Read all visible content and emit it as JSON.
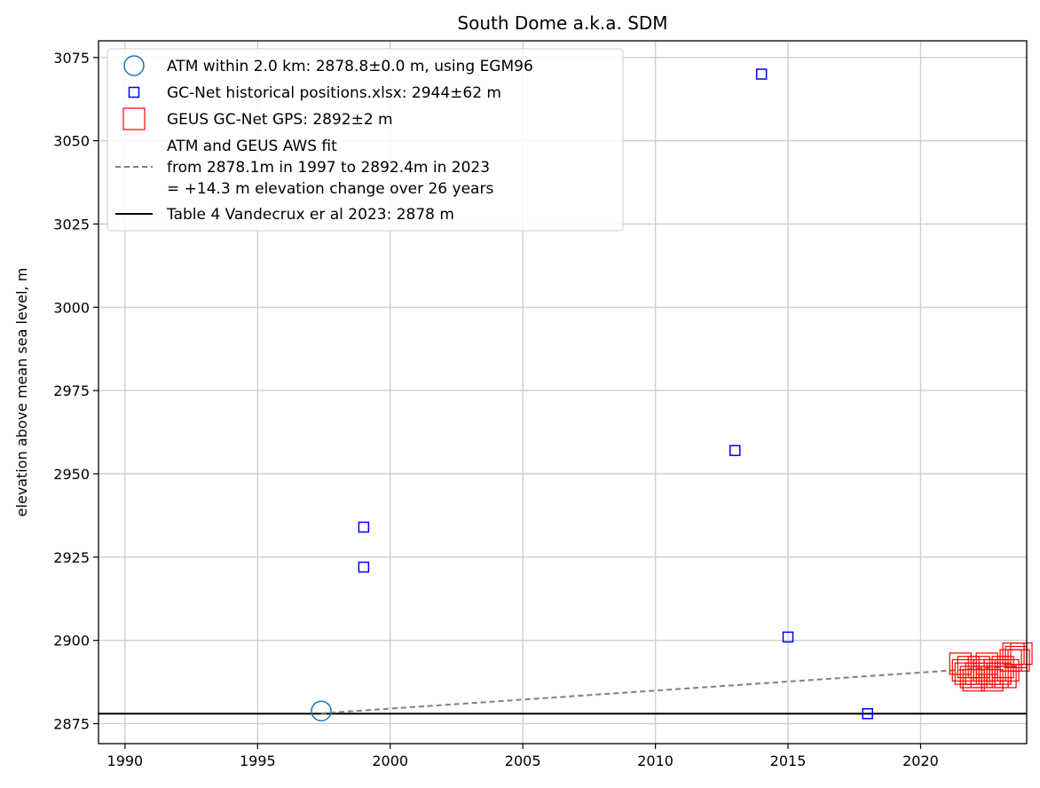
{
  "chart_data": {
    "type": "scatter",
    "title": "South Dome a.k.a. SDM",
    "xlabel": "",
    "ylabel": "elevation above mean sea level, m",
    "xlim": [
      1989,
      2024
    ],
    "ylim": [
      2869,
      3080
    ],
    "x_ticks": [
      1990,
      1995,
      2000,
      2005,
      2010,
      2015,
      2020
    ],
    "y_ticks": [
      2875,
      2900,
      2925,
      2950,
      2975,
      3000,
      3025,
      3050,
      3075
    ],
    "grid": true,
    "legend_position": "top-left",
    "colors": {
      "atm": "#1f77b4",
      "gcnet_hist": "#0000ff",
      "geus_gps": "#ff0000",
      "fit": "#808080",
      "table4": "#000000"
    },
    "series": [
      {
        "name": "ATM within 2.0 km: 2878.8±0.0 m, using EGM96",
        "marker": "circle",
        "points": [
          [
            1997.4,
            2878.8
          ]
        ]
      },
      {
        "name": "GC-Net historical positions.xlsx: 2944±62 m",
        "marker": "square-small",
        "points": [
          [
            1999,
            2934
          ],
          [
            1999,
            2922
          ],
          [
            2013,
            2957
          ],
          [
            2014,
            3070
          ],
          [
            2015,
            2901
          ],
          [
            2018,
            2878
          ]
        ]
      },
      {
        "name": "GEUS GC-Net GPS: 2892±2 m",
        "marker": "square-large",
        "points": [
          [
            2021.5,
            2893
          ],
          [
            2021.6,
            2891
          ],
          [
            2021.7,
            2890
          ],
          [
            2021.8,
            2892
          ],
          [
            2021.9,
            2889
          ],
          [
            2022.0,
            2888
          ],
          [
            2022.1,
            2890
          ],
          [
            2022.2,
            2892
          ],
          [
            2022.3,
            2889
          ],
          [
            2022.4,
            2891
          ],
          [
            2022.5,
            2893
          ],
          [
            2022.6,
            2890
          ],
          [
            2022.7,
            2888
          ],
          [
            2022.8,
            2891
          ],
          [
            2022.9,
            2889
          ],
          [
            2023.0,
            2890
          ],
          [
            2023.1,
            2892
          ],
          [
            2023.2,
            2889
          ],
          [
            2023.3,
            2891
          ],
          [
            2023.4,
            2894
          ],
          [
            2023.5,
            2896
          ],
          [
            2023.6,
            2895
          ],
          [
            2023.7,
            2894
          ],
          [
            2023.8,
            2896
          ]
        ]
      },
      {
        "name": "ATM and GEUS AWS fit\nfrom 2878.1m in 1997 to 2892.4m in 2023\n= +14.3 m elevation change over 26 years",
        "marker": "dashed-line",
        "points": [
          [
            1997.4,
            2878.1
          ],
          [
            2023.8,
            2892.4
          ]
        ]
      },
      {
        "name": "Table 4 Vandecrux er al 2023: 2878 m",
        "marker": "hline",
        "y": 2878
      }
    ]
  }
}
